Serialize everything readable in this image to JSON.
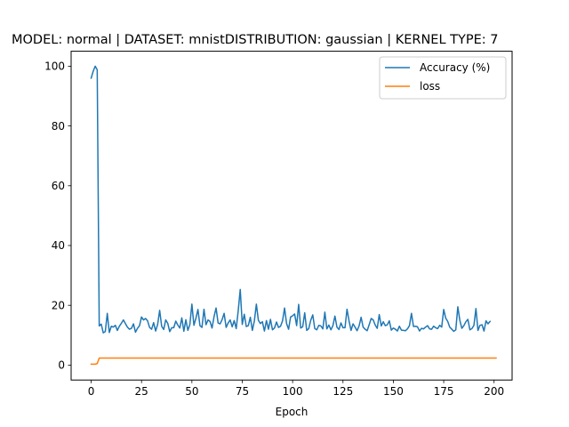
{
  "chart_data": {
    "type": "line",
    "title": "MODEL: normal | DATASET: mnistDISTRIBUTION: gaussian | KERNEL TYPE: 7",
    "xlabel": "Epoch",
    "ylabel": "",
    "xlim": [
      -9.95,
      208.95
    ],
    "ylim": [
      -5,
      105
    ],
    "xticks": [
      0,
      25,
      50,
      75,
      100,
      125,
      150,
      175,
      200
    ],
    "yticks": [
      0,
      20,
      40,
      60,
      80,
      100
    ],
    "grid": false,
    "legend_position": "top-right",
    "series": [
      {
        "name": "Accuracy (%)",
        "color": "#1f77b4",
        "x_start": 0,
        "x_step": 1,
        "values": [
          96,
          98.3,
          100,
          98.8,
          13.1,
          13.7,
          10.8,
          11.2,
          17.3,
          10.9,
          13.0,
          12.7,
          13.3,
          11.6,
          13.0,
          14.0,
          15.1,
          13.9,
          12.7,
          12.0,
          12.3,
          13.8,
          11.0,
          12.3,
          13.2,
          16.1,
          15.1,
          15.6,
          14.8,
          12.6,
          12.0,
          14.2,
          11.4,
          13.6,
          18.3,
          13.0,
          11.9,
          15.1,
          14.0,
          11.2,
          12.5,
          12.5,
          14.7,
          13.4,
          12.4,
          15.8,
          11.3,
          15.2,
          11.6,
          13.6,
          20.4,
          13.3,
          15.7,
          18.6,
          13.2,
          12.6,
          18.7,
          13.5,
          15.1,
          14.6,
          12.4,
          16.2,
          19.1,
          14.1,
          13.8,
          15.2,
          17.3,
          12.6,
          14.1,
          15.1,
          12.8,
          14.9,
          12.2,
          18.2,
          25.3,
          13.6,
          17.0,
          12.9,
          13.2,
          16.0,
          11.6,
          14.7,
          20.4,
          15.0,
          13.9,
          14.5,
          11.4,
          14.9,
          12.0,
          15.3,
          11.8,
          12.4,
          14.4,
          12.6,
          13.0,
          14.8,
          19.1,
          13.9,
          12.0,
          16.1,
          16.5,
          17.1,
          13.2,
          20.3,
          12.4,
          12.8,
          17.5,
          11.6,
          12.2,
          15.0,
          16.8,
          12.2,
          11.8,
          13.3,
          13.1,
          12.1,
          17.7,
          12.1,
          13.4,
          11.8,
          13.2,
          16.4,
          12.7,
          11.9,
          14.1,
          12.5,
          12.5,
          18.7,
          14.8,
          11.6,
          13.8,
          12.7,
          11.5,
          13.1,
          16.0,
          12.7,
          12.0,
          11.5,
          13.5,
          15.6,
          15.1,
          13.4,
          12.3,
          16.9,
          13.1,
          14.5,
          13.2,
          13.5,
          14.8,
          11.7,
          12.4,
          12.0,
          11.4,
          13.0,
          11.7,
          11.6,
          11.5,
          12.1,
          13.2,
          17.3,
          12.9,
          13.0,
          12.8,
          11.4,
          12.3,
          12.1,
          12.7,
          13.2,
          12.1,
          12.0,
          13.0,
          12.5,
          12.2,
          13.3,
          12.7,
          18.6,
          15.7,
          14.6,
          12.7,
          12.0,
          11.3,
          11.8,
          19.5,
          15.0,
          12.3,
          13.2,
          14.5,
          15.3,
          11.8,
          12.2,
          13.3,
          18.9,
          11.6,
          13.3,
          13.5,
          11.4,
          14.8,
          13.8,
          14.6
        ]
      },
      {
        "name": "loss",
        "color": "#ff7f0e",
        "x_start": 0,
        "x_step": 1,
        "values": [
          0.3,
          0.3,
          0.3,
          0.5,
          2.35,
          2.35,
          2.35,
          2.35,
          2.35,
          2.35,
          2.35,
          2.35,
          2.35,
          2.35,
          2.35,
          2.35,
          2.35,
          2.35,
          2.35,
          2.35,
          2.35,
          2.35,
          2.35,
          2.35,
          2.35,
          2.35,
          2.35,
          2.35,
          2.35,
          2.35,
          2.35,
          2.35,
          2.35,
          2.35,
          2.35,
          2.35,
          2.35,
          2.35,
          2.35,
          2.35,
          2.35,
          2.35,
          2.35,
          2.35,
          2.35,
          2.35,
          2.35,
          2.35,
          2.35,
          2.35,
          2.35,
          2.35,
          2.35,
          2.35,
          2.35,
          2.35,
          2.35,
          2.35,
          2.35,
          2.35,
          2.35,
          2.35,
          2.35,
          2.35,
          2.35,
          2.35,
          2.35,
          2.35,
          2.35,
          2.35,
          2.35,
          2.35,
          2.35,
          2.35,
          2.35,
          2.35,
          2.35,
          2.35,
          2.35,
          2.35,
          2.35,
          2.35,
          2.35,
          2.35,
          2.35,
          2.35,
          2.35,
          2.35,
          2.35,
          2.35,
          2.35,
          2.35,
          2.35,
          2.35,
          2.35,
          2.35,
          2.35,
          2.35,
          2.35,
          2.35,
          2.35,
          2.35,
          2.35,
          2.35,
          2.35,
          2.35,
          2.35,
          2.35,
          2.35,
          2.35,
          2.35,
          2.35,
          2.35,
          2.35,
          2.35,
          2.35,
          2.35,
          2.35,
          2.35,
          2.35,
          2.35,
          2.35,
          2.35,
          2.35,
          2.35,
          2.35,
          2.35,
          2.35,
          2.35,
          2.35,
          2.35,
          2.35,
          2.35,
          2.35,
          2.35,
          2.35,
          2.35,
          2.35,
          2.35,
          2.35,
          2.35,
          2.35,
          2.35,
          2.35,
          2.35,
          2.35,
          2.35,
          2.35,
          2.35,
          2.35,
          2.35,
          2.35,
          2.35,
          2.35,
          2.35,
          2.35,
          2.35,
          2.35,
          2.35,
          2.35,
          2.35,
          2.35,
          2.35,
          2.35,
          2.35,
          2.35,
          2.35,
          2.35,
          2.35,
          2.35,
          2.35,
          2.35,
          2.35,
          2.35,
          2.35,
          2.35,
          2.35,
          2.35,
          2.35,
          2.35,
          2.35,
          2.35,
          2.35,
          2.35,
          2.35,
          2.35,
          2.35,
          2.35,
          2.35,
          2.35,
          2.35,
          2.35,
          2.35,
          2.35,
          2.35,
          2.35,
          2.35,
          2.35,
          2.35,
          2.35,
          2.35,
          2.35
        ]
      }
    ]
  }
}
